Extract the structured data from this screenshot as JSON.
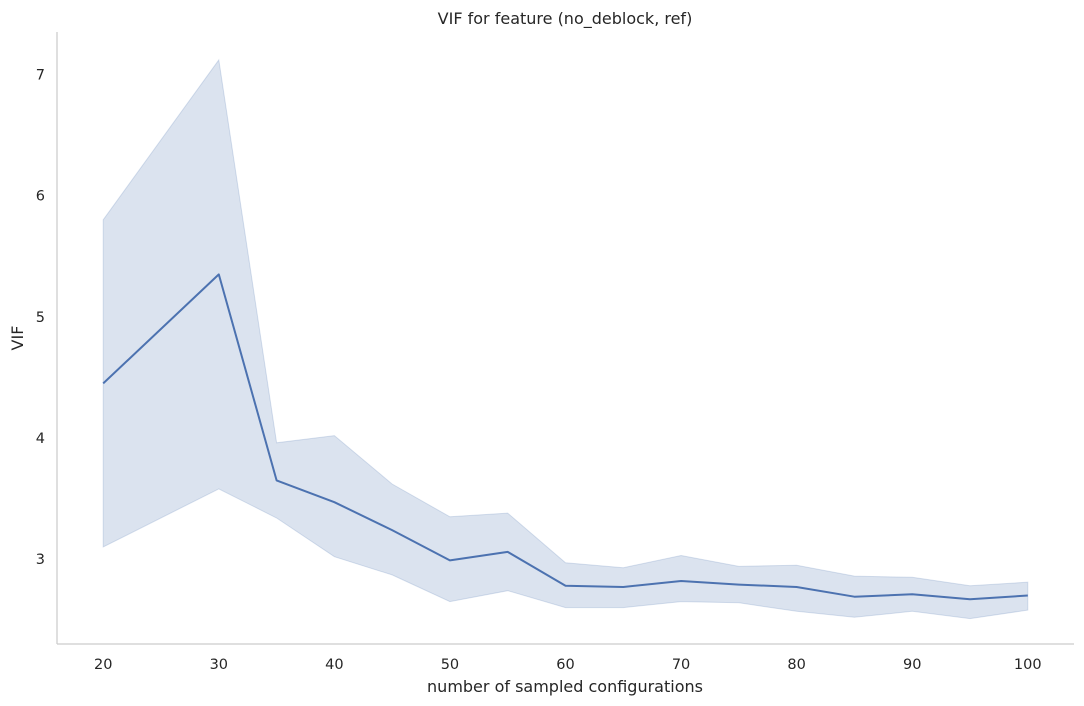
{
  "chart_data": {
    "type": "line",
    "title": "VIF for feature (no_deblock, ref)",
    "xlabel": "number of sampled configurations",
    "ylabel": "VIF",
    "xlim": [
      16,
      104
    ],
    "ylim": [
      2.3,
      7.35
    ],
    "xticks": [
      20,
      30,
      40,
      50,
      60,
      70,
      80,
      90,
      100
    ],
    "yticks": [
      3,
      4,
      5,
      6,
      7
    ],
    "grid": false,
    "legend": "none",
    "color": "#4c72b0",
    "series": [
      {
        "x": [
          20,
          30,
          35,
          40,
          45,
          50,
          55,
          60,
          65,
          70,
          75,
          80,
          85,
          90,
          95,
          100
        ],
        "values": [
          4.45,
          5.35,
          3.65,
          3.47,
          3.24,
          2.99,
          3.06,
          2.78,
          2.77,
          2.82,
          2.79,
          2.77,
          2.69,
          2.71,
          2.67,
          2.7
        ],
        "lower": [
          3.1,
          3.58,
          3.34,
          3.02,
          2.87,
          2.65,
          2.74,
          2.6,
          2.6,
          2.65,
          2.64,
          2.57,
          2.52,
          2.57,
          2.51,
          2.58
        ],
        "upper": [
          5.8,
          7.12,
          3.96,
          4.02,
          3.62,
          3.35,
          3.38,
          2.97,
          2.93,
          3.03,
          2.94,
          2.95,
          2.86,
          2.85,
          2.78,
          2.81
        ]
      }
    ]
  }
}
